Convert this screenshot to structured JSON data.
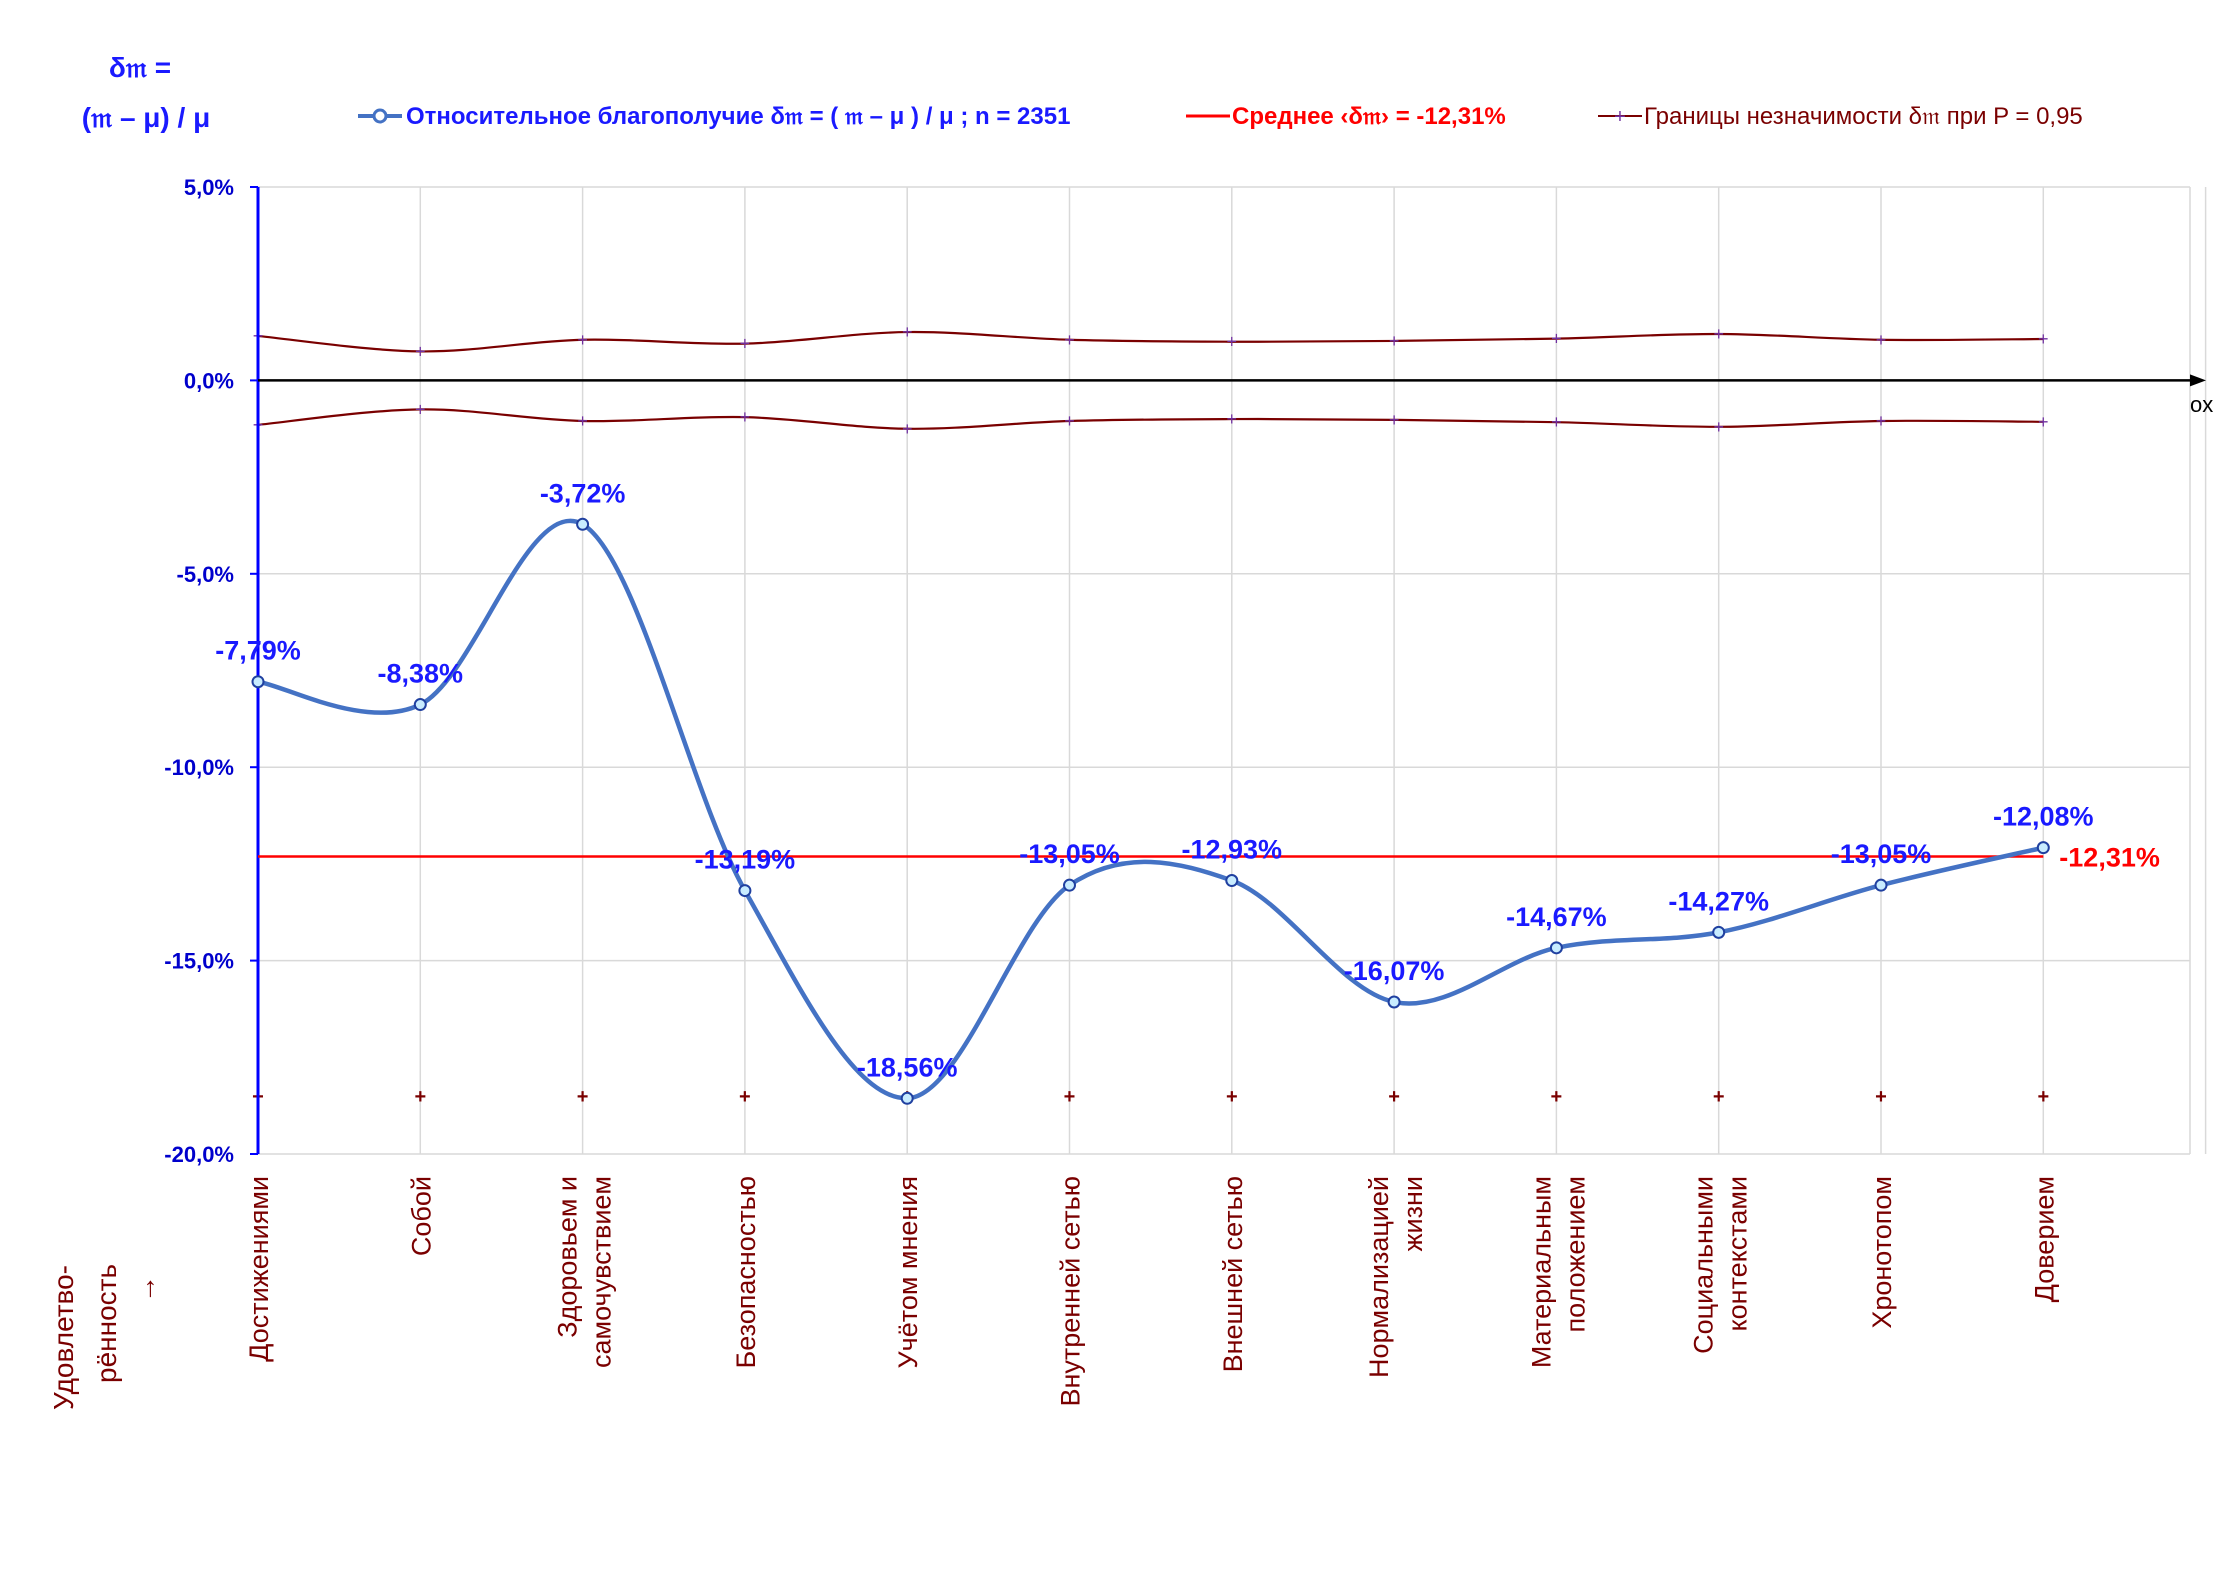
{
  "chart_data": {
    "type": "line",
    "y_title_line1": "δ𝔪 =",
    "y_title_line2": "(𝔪 – μ) / μ",
    "x_title_line1": "Удовлетво-",
    "x_title_line2": "рённость",
    "x_title_line3": "→",
    "x_axis_name": "ox",
    "categories": [
      [
        "Достижениями"
      ],
      [
        "Собой"
      ],
      [
        "Здоровьем и",
        "самочувствием"
      ],
      [
        "Безопасностью"
      ],
      [
        "Учётом мнения"
      ],
      [
        "Внутренней сетью"
      ],
      [
        "Внешней сетью"
      ],
      [
        "Нормализацией",
        "жизни"
      ],
      [
        "Материальным",
        "положением"
      ],
      [
        "Социальными",
        "контекстами"
      ],
      [
        "Хронотопом"
      ],
      [
        "Доверием"
      ]
    ],
    "ylim": [
      -20,
      5
    ],
    "y_ticks": [
      {
        "value": 5,
        "label": "5,0%"
      },
      {
        "value": 0,
        "label": "0,0%"
      },
      {
        "value": -5,
        "label": "-5,0%"
      },
      {
        "value": -10,
        "label": "-10,0%"
      },
      {
        "value": -15,
        "label": "-15,0%"
      },
      {
        "value": -20,
        "label": "-20,0%"
      }
    ],
    "grid": true,
    "series": [
      {
        "name": "Относительное благополучие δ𝔪 = ( 𝔪 – μ ) / μ ; n = 2351",
        "color": "#4472c4",
        "values": [
          -7.79,
          -8.38,
          -3.72,
          -13.19,
          -18.56,
          -13.05,
          -12.93,
          -16.07,
          -14.67,
          -14.27,
          -13.05,
          -12.08
        ],
        "labels": [
          "-7,79%",
          "-8,38%",
          "-3,72%",
          "-13,19%",
          "-18,56%",
          "-13,05%",
          "-12,93%",
          "-16,07%",
          "-14,67%",
          "-14,27%",
          "-13,05%",
          "-12,08%"
        ]
      }
    ],
    "mean": {
      "name": "Среднее ‹δ𝔪› = -12,31%",
      "value": -12.31,
      "label": "-12,31%",
      "color": "#ff0000"
    },
    "bounds": {
      "name": "Границы незначимости δ𝔪 при P = 0,95",
      "color": "#7a0000",
      "marker_color": "#7030a0",
      "upper": [
        1.15,
        0.75,
        1.05,
        0.95,
        1.25,
        1.05,
        1.0,
        1.02,
        1.08,
        1.2,
        1.05,
        1.07
      ],
      "lower": [
        -1.15,
        -0.75,
        -1.05,
        -0.95,
        -1.25,
        -1.05,
        -1.0,
        -1.02,
        -1.08,
        -1.2,
        -1.05,
        -1.07
      ],
      "floor_marks_value": -18.5
    },
    "legend": "top"
  }
}
